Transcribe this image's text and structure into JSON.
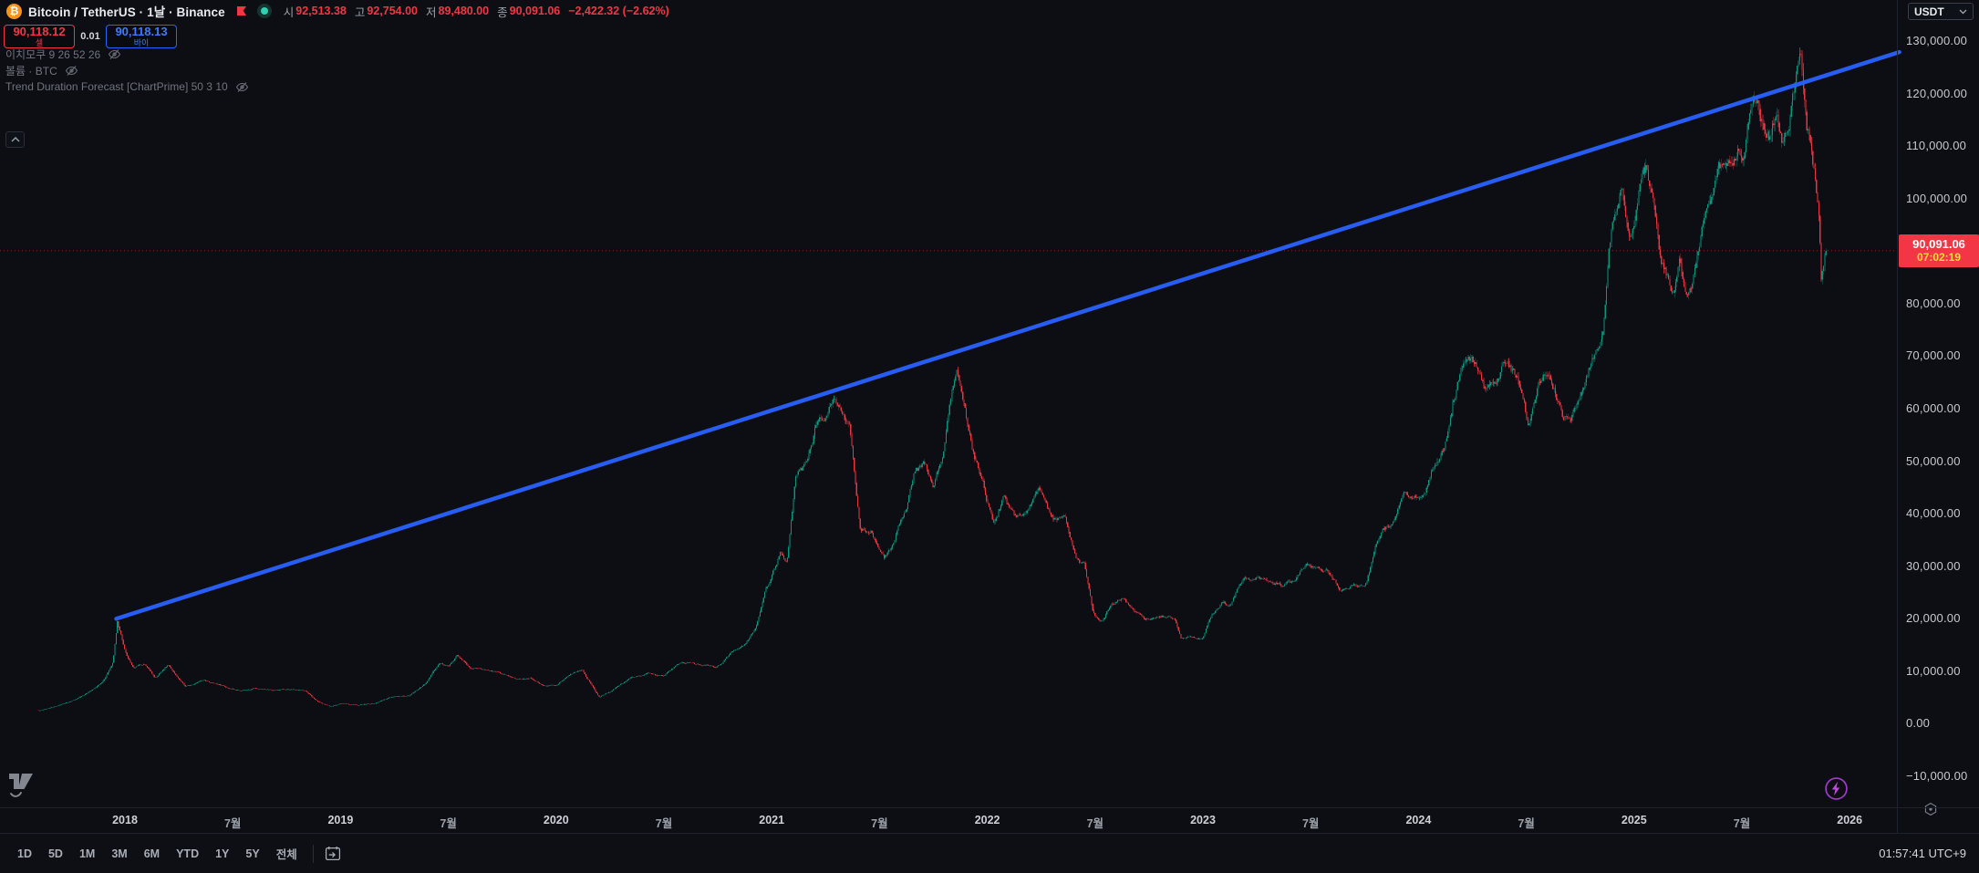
{
  "header": {
    "symbol_glyph": "₿",
    "title": "Bitcoin / TetherUS · 1날 · Binance",
    "ohlc": {
      "open_label": "시",
      "open": "92,513.38",
      "high_label": "고",
      "high": "92,754.00",
      "low_label": "저",
      "low": "89,480.00",
      "close_label": "종",
      "close": "90,091.06",
      "change": "−2,422.32 (−2.62%)"
    },
    "currency": "USDT"
  },
  "trade_panel": {
    "sell_price": "90,118.12",
    "sell_label": "셀",
    "spread": "0.01",
    "buy_price": "90,118.13",
    "buy_label": "바이"
  },
  "indicators": [
    {
      "label": "이치모쿠 9 26 52 26",
      "hidden": true
    },
    {
      "label": "볼륨 · BTC",
      "hidden": true
    },
    {
      "label": "Trend Duration Forecast [ChartPrime] 50 3 10",
      "hidden": true
    }
  ],
  "price_axis": {
    "current_price": "90,091.06",
    "countdown": "07:02:19",
    "ticks": [
      {
        "v": 130000,
        "t": "130,000.00"
      },
      {
        "v": 120000,
        "t": "120,000.00"
      },
      {
        "v": 110000,
        "t": "110,000.00"
      },
      {
        "v": 100000,
        "t": "100,000.00"
      },
      {
        "v": 80000,
        "t": "80,000.00"
      },
      {
        "v": 70000,
        "t": "70,000.00"
      },
      {
        "v": 60000,
        "t": "60,000.00"
      },
      {
        "v": 50000,
        "t": "50,000.00"
      },
      {
        "v": 40000,
        "t": "40,000.00"
      },
      {
        "v": 30000,
        "t": "30,000.00"
      },
      {
        "v": 20000,
        "t": "20,000.00"
      },
      {
        "v": 10000,
        "t": "10,000.00"
      },
      {
        "v": 0,
        "t": "0.00"
      },
      {
        "v": -10000,
        "t": "−10,000.00"
      }
    ]
  },
  "time_axis": [
    {
      "year": 2018.0,
      "label": "2018",
      "major": true
    },
    {
      "year": 2018.5,
      "label": "7월"
    },
    {
      "year": 2019.0,
      "label": "2019",
      "major": true
    },
    {
      "year": 2019.5,
      "label": "7월"
    },
    {
      "year": 2020.0,
      "label": "2020",
      "major": true
    },
    {
      "year": 2020.5,
      "label": "7월"
    },
    {
      "year": 2021.0,
      "label": "2021",
      "major": true
    },
    {
      "year": 2021.5,
      "label": "7월"
    },
    {
      "year": 2022.0,
      "label": "2022",
      "major": true
    },
    {
      "year": 2022.5,
      "label": "7월"
    },
    {
      "year": 2023.0,
      "label": "2023",
      "major": true
    },
    {
      "year": 2023.5,
      "label": "7월"
    },
    {
      "year": 2024.0,
      "label": "2024",
      "major": true
    },
    {
      "year": 2024.5,
      "label": "7월"
    },
    {
      "year": 2025.0,
      "label": "2025",
      "major": true
    },
    {
      "year": 2025.5,
      "label": "7월"
    },
    {
      "year": 2026.0,
      "label": "2026",
      "major": true
    }
  ],
  "toolbar": {
    "ranges": [
      "1D",
      "5D",
      "1M",
      "3M",
      "6M",
      "YTD",
      "1Y",
      "5Y",
      "전체"
    ],
    "clock": "01:57:41 UTC+9"
  },
  "colors": {
    "up": "#089981",
    "down": "#f23645",
    "trendline": "#2962ff",
    "sell": "#f23645",
    "buy": "#2962ff",
    "countdown_text": "#ffd83d",
    "price_line": "#f23645"
  },
  "chart_data": {
    "type": "candlestick",
    "ylim": [
      -10000,
      130000
    ],
    "x_years_visible": [
      2017.6,
      2026.2
    ],
    "last_price": 90091.06,
    "trendline": {
      "from_year": 2017.96,
      "from_price": 20000,
      "to_year": 2026.23,
      "to_price": 127900
    },
    "candle_count": 1500,
    "keypoints": [
      [
        2017.6,
        2550
      ],
      [
        2017.68,
        3300
      ],
      [
        2017.76,
        4400
      ],
      [
        2017.84,
        6200
      ],
      [
        2017.9,
        8000
      ],
      [
        2017.945,
        11500
      ],
      [
        2017.965,
        19300
      ],
      [
        2018.0,
        13600
      ],
      [
        2018.04,
        10300
      ],
      [
        2018.09,
        11300
      ],
      [
        2018.14,
        8600
      ],
      [
        2018.2,
        10900
      ],
      [
        2018.28,
        7100
      ],
      [
        2018.36,
        8300
      ],
      [
        2018.44,
        7500
      ],
      [
        2018.52,
        6300
      ],
      [
        2018.6,
        6700
      ],
      [
        2018.68,
        6300
      ],
      [
        2018.76,
        6500
      ],
      [
        2018.84,
        6350
      ],
      [
        2018.89,
        4300
      ],
      [
        2018.95,
        3300
      ],
      [
        2019.0,
        3800
      ],
      [
        2019.08,
        3600
      ],
      [
        2019.16,
        3950
      ],
      [
        2019.24,
        5100
      ],
      [
        2019.32,
        5350
      ],
      [
        2019.4,
        7900
      ],
      [
        2019.46,
        11300
      ],
      [
        2019.5,
        10800
      ],
      [
        2019.54,
        12900
      ],
      [
        2019.6,
        10700
      ],
      [
        2019.68,
        10300
      ],
      [
        2019.76,
        9600
      ],
      [
        2019.82,
        8300
      ],
      [
        2019.88,
        9100
      ],
      [
        2019.94,
        7300
      ],
      [
        2020.0,
        7200
      ],
      [
        2020.07,
        9400
      ],
      [
        2020.12,
        10200
      ],
      [
        2020.2,
        5000
      ],
      [
        2020.28,
        6900
      ],
      [
        2020.35,
        8900
      ],
      [
        2020.42,
        9600
      ],
      [
        2020.5,
        9150
      ],
      [
        2020.58,
        11700
      ],
      [
        2020.66,
        11500
      ],
      [
        2020.74,
        10600
      ],
      [
        2020.82,
        13500
      ],
      [
        2020.88,
        15800
      ],
      [
        2020.93,
        19200
      ],
      [
        2020.97,
        26500
      ],
      [
        2021.0,
        29000
      ],
      [
        2021.04,
        33500
      ],
      [
        2021.07,
        31500
      ],
      [
        2021.11,
        46500
      ],
      [
        2021.16,
        48500
      ],
      [
        2021.21,
        57200
      ],
      [
        2021.25,
        59000
      ],
      [
        2021.29,
        63200
      ],
      [
        2021.32,
        58800
      ],
      [
        2021.36,
        57000
      ],
      [
        2021.41,
        37500
      ],
      [
        2021.46,
        36800
      ],
      [
        2021.52,
        31700
      ],
      [
        2021.57,
        34300
      ],
      [
        2021.62,
        40500
      ],
      [
        2021.66,
        47100
      ],
      [
        2021.71,
        48800
      ],
      [
        2021.75,
        44600
      ],
      [
        2021.79,
        51000
      ],
      [
        2021.83,
        61400
      ],
      [
        2021.86,
        67000
      ],
      [
        2021.9,
        58000
      ],
      [
        2021.94,
        50500
      ],
      [
        2021.98,
        46300
      ],
      [
        2022.03,
        38500
      ],
      [
        2022.08,
        43900
      ],
      [
        2022.13,
        39200
      ],
      [
        2022.18,
        41500
      ],
      [
        2022.24,
        46500
      ],
      [
        2022.3,
        40500
      ],
      [
        2022.36,
        38500
      ],
      [
        2022.41,
        31300
      ],
      [
        2022.45,
        29800
      ],
      [
        2022.49,
        20800
      ],
      [
        2022.53,
        19100
      ],
      [
        2022.58,
        22500
      ],
      [
        2022.63,
        23900
      ],
      [
        2022.68,
        21500
      ],
      [
        2022.73,
        19800
      ],
      [
        2022.79,
        20100
      ],
      [
        2022.84,
        20300
      ],
      [
        2022.87,
        19500
      ],
      [
        2022.9,
        16300
      ],
      [
        2022.95,
        16900
      ],
      [
        2023.0,
        16600
      ],
      [
        2023.04,
        21100
      ],
      [
        2023.09,
        23400
      ],
      [
        2023.13,
        22300
      ],
      [
        2023.19,
        28200
      ],
      [
        2023.25,
        28300
      ],
      [
        2023.31,
        27600
      ],
      [
        2023.36,
        26800
      ],
      [
        2023.42,
        27200
      ],
      [
        2023.48,
        30500
      ],
      [
        2023.53,
        29900
      ],
      [
        2023.58,
        29200
      ],
      [
        2023.64,
        25900
      ],
      [
        2023.7,
        26600
      ],
      [
        2023.76,
        27300
      ],
      [
        2023.81,
        34600
      ],
      [
        2023.87,
        37500
      ],
      [
        2023.93,
        43500
      ],
      [
        2023.97,
        42200
      ],
      [
        2024.02,
        42800
      ],
      [
        2024.07,
        48200
      ],
      [
        2024.12,
        52000
      ],
      [
        2024.16,
        61500
      ],
      [
        2024.2,
        68000
      ],
      [
        2024.23,
        71500
      ],
      [
        2024.27,
        69000
      ],
      [
        2024.32,
        64500
      ],
      [
        2024.37,
        67000
      ],
      [
        2024.41,
        70500
      ],
      [
        2024.46,
        66000
      ],
      [
        2024.51,
        56500
      ],
      [
        2024.55,
        64000
      ],
      [
        2024.59,
        67500
      ],
      [
        2024.63,
        64300
      ],
      [
        2024.67,
        57800
      ],
      [
        2024.71,
        59500
      ],
      [
        2024.75,
        63000
      ],
      [
        2024.79,
        66200
      ],
      [
        2024.82,
        69000
      ],
      [
        2024.855,
        75500
      ],
      [
        2024.885,
        91500
      ],
      [
        2024.91,
        97800
      ],
      [
        2024.94,
        106000
      ],
      [
        2024.97,
        96500
      ],
      [
        2025.0,
        94300
      ],
      [
        2025.03,
        102300
      ],
      [
        2025.06,
        104500
      ],
      [
        2025.09,
        96800
      ],
      [
        2025.12,
        86200
      ],
      [
        2025.15,
        84000
      ],
      [
        2025.18,
        82800
      ],
      [
        2025.21,
        87400
      ],
      [
        2025.24,
        82000
      ],
      [
        2025.27,
        85300
      ],
      [
        2025.31,
        94500
      ],
      [
        2025.35,
        97200
      ],
      [
        2025.39,
        103800
      ],
      [
        2025.43,
        103200
      ],
      [
        2025.47,
        107900
      ],
      [
        2025.51,
        110300
      ],
      [
        2025.545,
        117600
      ],
      [
        2025.575,
        120500
      ],
      [
        2025.6,
        114800
      ],
      [
        2025.63,
        112500
      ],
      [
        2025.66,
        117500
      ],
      [
        2025.69,
        111200
      ],
      [
        2025.72,
        114900
      ],
      [
        2025.75,
        121300
      ],
      [
        2025.775,
        125800
      ],
      [
        2025.8,
        113200
      ],
      [
        2025.82,
        109500
      ],
      [
        2025.84,
        103200
      ],
      [
        2025.856,
        96200
      ],
      [
        2025.868,
        83900
      ],
      [
        2025.878,
        87200
      ],
      [
        2025.89,
        90091
      ]
    ]
  }
}
